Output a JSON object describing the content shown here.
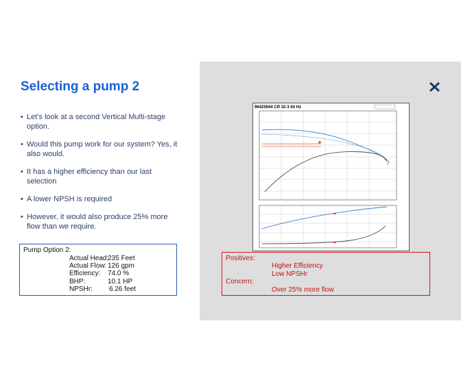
{
  "slide": {
    "title": "Selecting a pump 2",
    "bullets": [
      "Let’s look at a second Vertical Multi-stage option.",
      "Would this pump work for our system?  Yes, it also would.",
      "It has a higher efficiency than our last selection",
      "A lower NPSH is required",
      "However, it would also produce 25% more flow than we require."
    ],
    "pump_option": {
      "heading": "Pump Option 2:",
      "rows": [
        {
          "label": "Actual Head:",
          "value": "235 Feet"
        },
        {
          "label": "Actual Flow:",
          "value": "126 gpm"
        },
        {
          "label": "Efficiency:",
          "value": "74.0 %"
        },
        {
          "label": "BHP:",
          "value": "10.1 HP"
        },
        {
          "label": "NPSHr:",
          "value": "6.26 feet"
        }
      ]
    },
    "chart_image": {
      "title": "96425944 CR 32-3 60 Hz"
    },
    "notes": {
      "positives_heading": "Positives:",
      "positives": [
        "Higher Efficiency",
        "Low NPSHr"
      ],
      "concern_heading": "Concern:",
      "concerns": [
        "Over 25% more flow"
      ]
    }
  }
}
